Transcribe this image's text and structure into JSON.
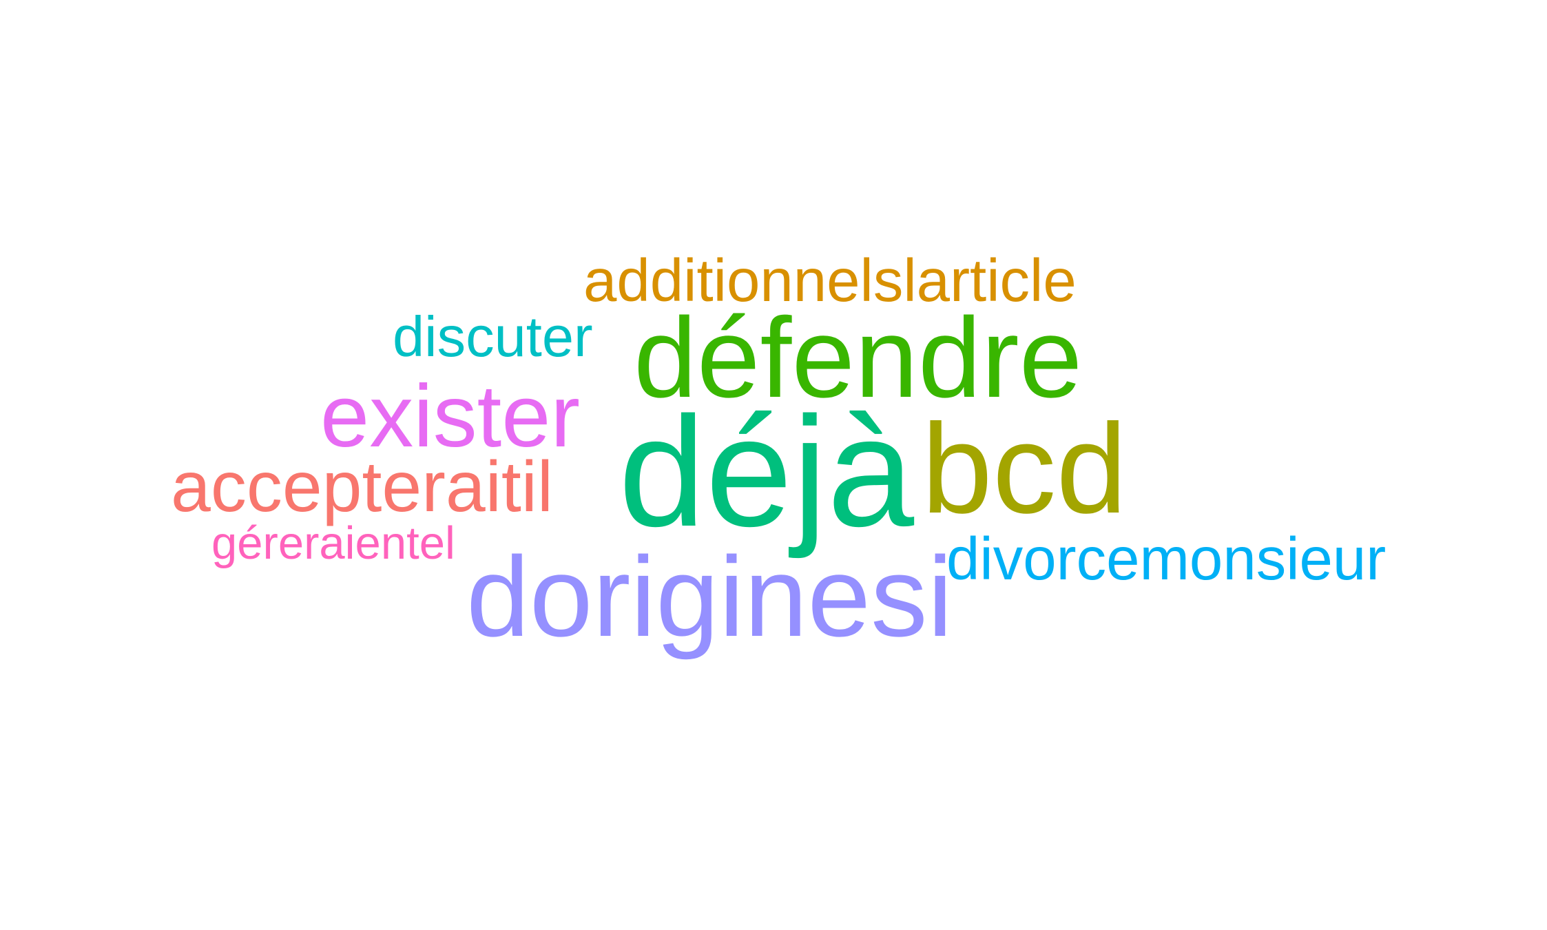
{
  "words": [
    {
      "key": "additionnelslarticle",
      "text": "additionnelslarticle",
      "color": "#D89000"
    },
    {
      "key": "discuter",
      "text": "discuter",
      "color": "#00BFC4"
    },
    {
      "key": "defendre",
      "text": "défendre",
      "color": "#39B600"
    },
    {
      "key": "exister",
      "text": "exister",
      "color": "#E76BF3"
    },
    {
      "key": "deja",
      "text": "déjà",
      "color": "#00BF7D"
    },
    {
      "key": "bcd",
      "text": "bcd",
      "color": "#A3A500"
    },
    {
      "key": "accepteraitil",
      "text": "accepteraitil",
      "color": "#F8766D"
    },
    {
      "key": "gereraientel",
      "text": "géreraientel",
      "color": "#FF62BC"
    },
    {
      "key": "divorcemonsieur",
      "text": "divorcemonsieur",
      "color": "#00B0F6"
    },
    {
      "key": "doriginesi",
      "text": "doriginesi",
      "color": "#9590FF"
    }
  ]
}
